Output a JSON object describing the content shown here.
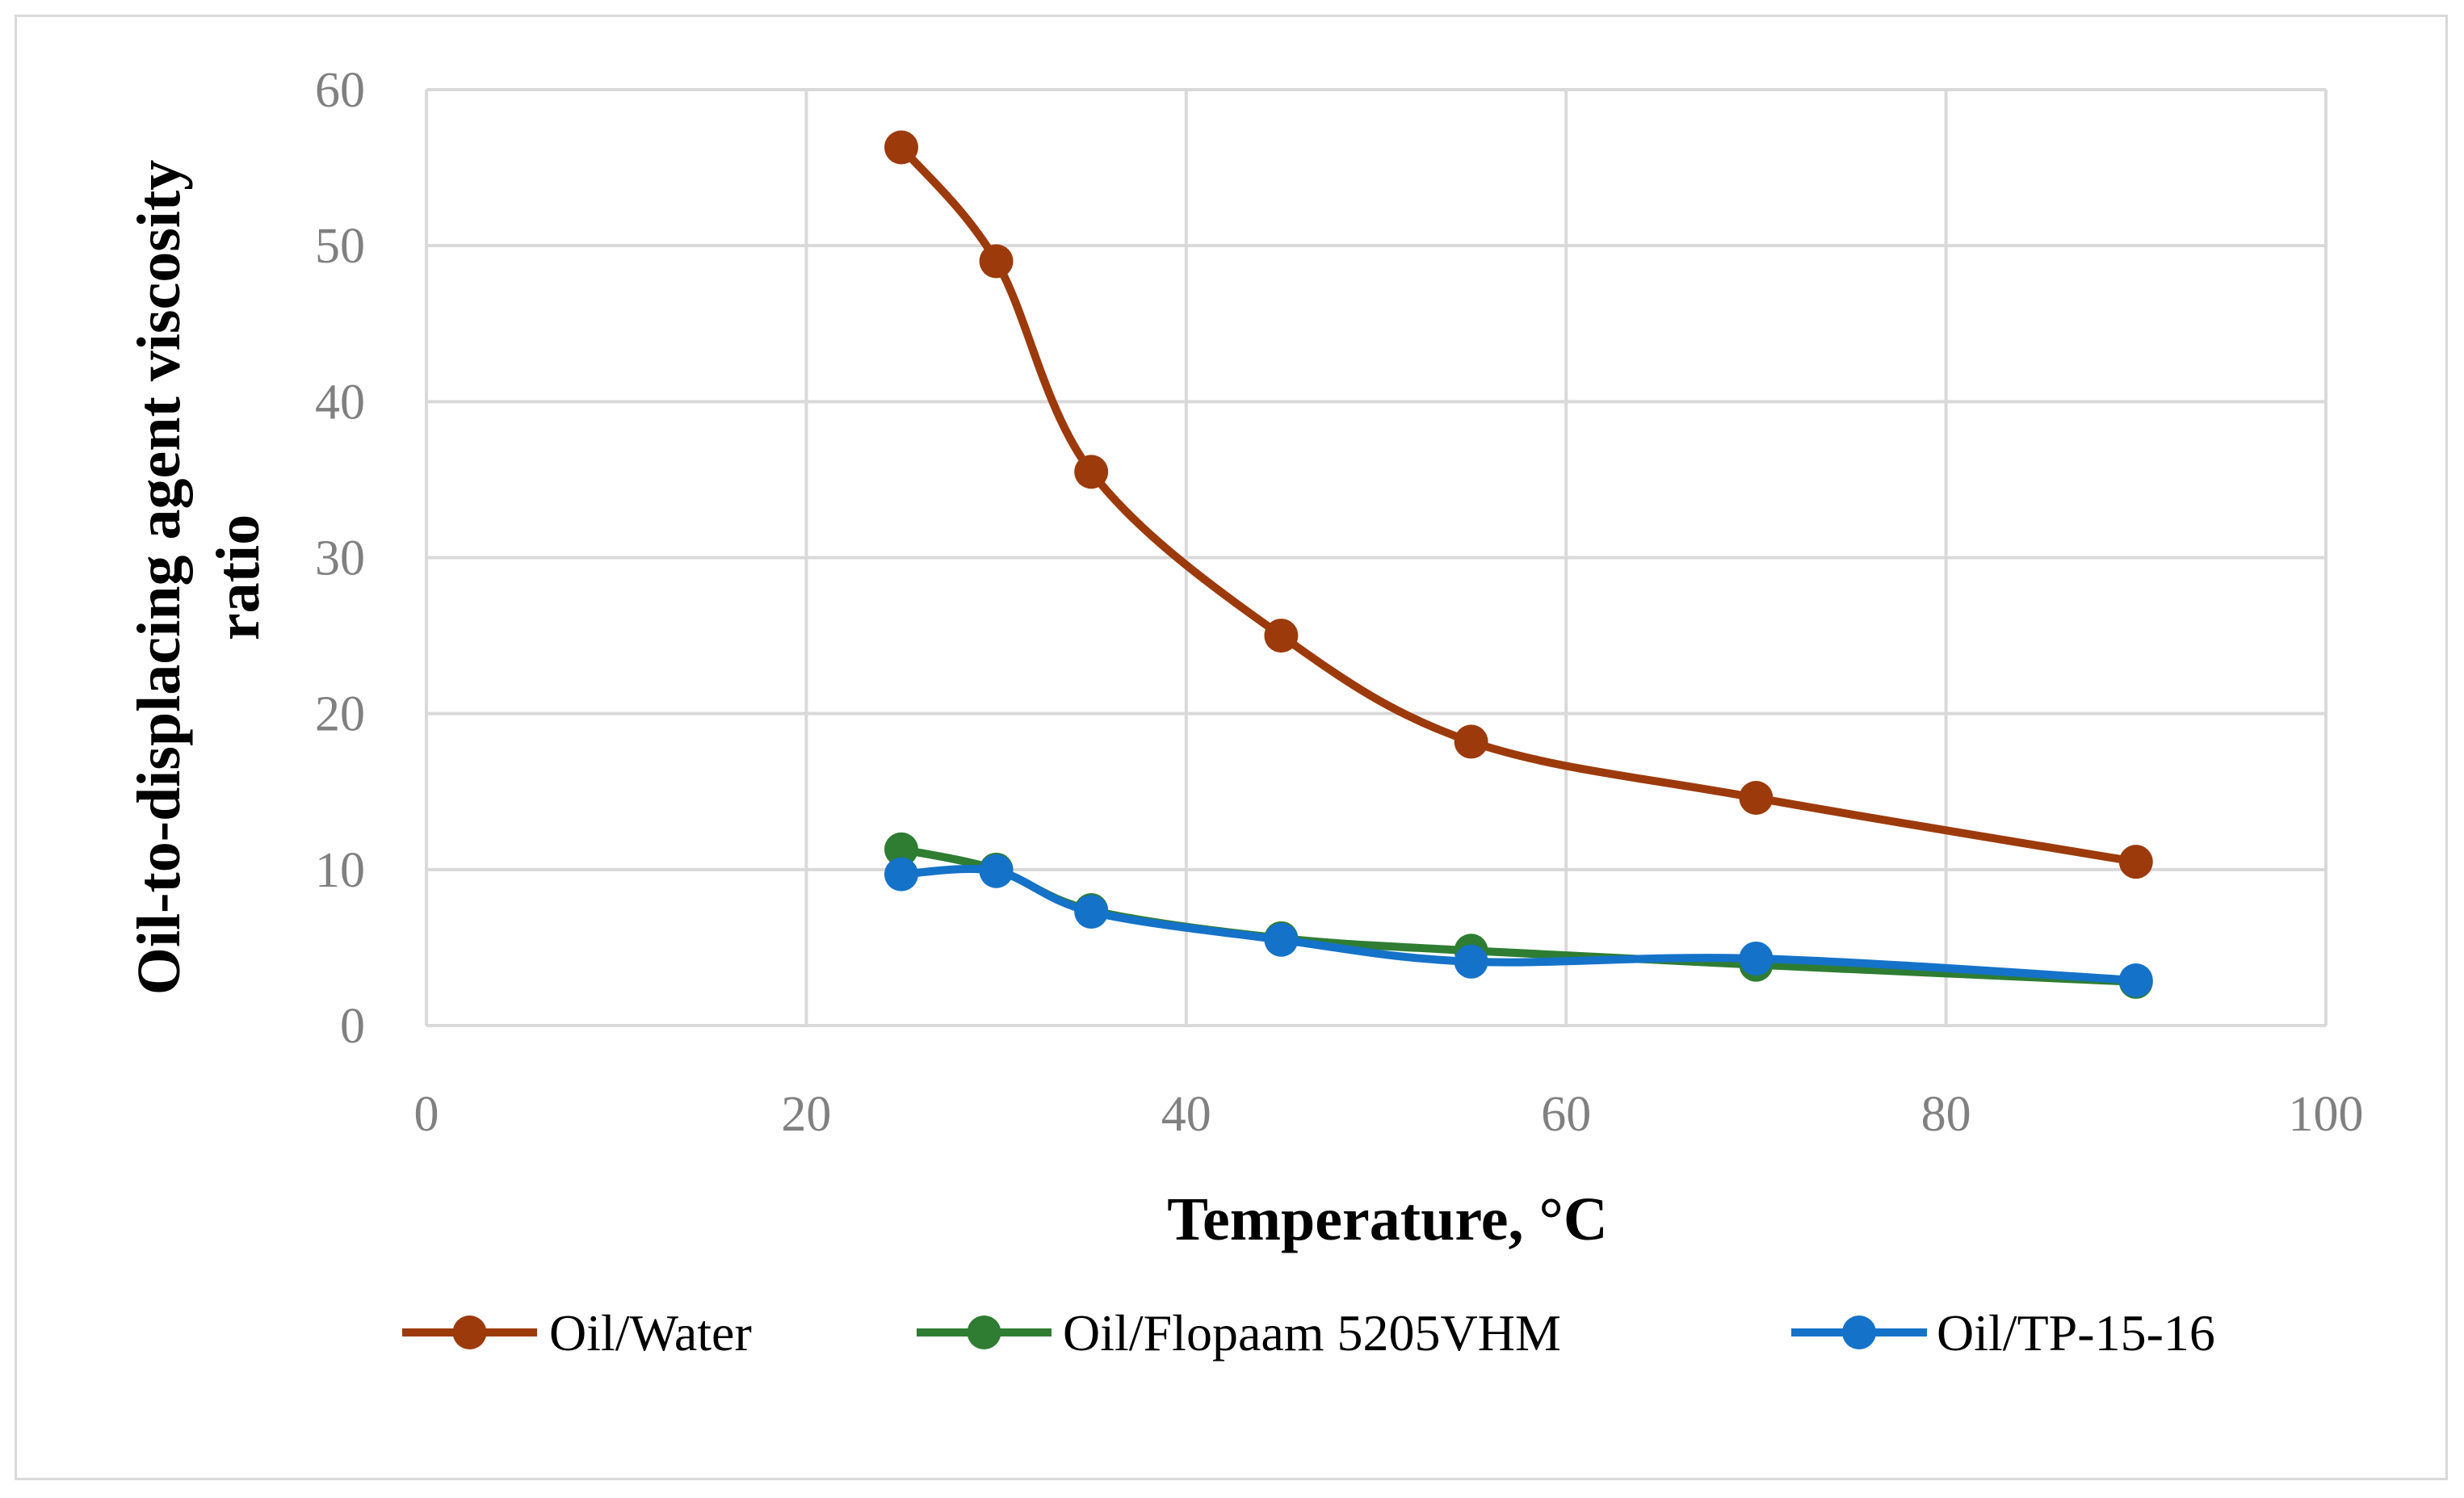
{
  "chart_data": {
    "type": "line",
    "title": "",
    "xlabel": "Temperature, °C",
    "ylabel_line1": "Oil-to-displacing agent viscosity",
    "ylabel_line2": "ratio",
    "xlim": [
      0,
      100
    ],
    "ylim": [
      0,
      60
    ],
    "x_ticks": [
      0,
      20,
      40,
      60,
      80,
      100
    ],
    "y_ticks": [
      0,
      10,
      20,
      30,
      40,
      50,
      60
    ],
    "x_tick_labels": [
      "0",
      "20",
      "40",
      "60",
      "80",
      "100"
    ],
    "y_tick_labels": [
      "0",
      "10",
      "20",
      "30",
      "40",
      "50",
      "60"
    ],
    "grid": true,
    "smooth": true,
    "legend_position": "bottom",
    "series": [
      {
        "name": "Oil/Water",
        "color": "#9c3a0c",
        "x": [
          25,
          30,
          35,
          45,
          55,
          70,
          90
        ],
        "y": [
          56.3,
          49.0,
          35.5,
          25.0,
          18.2,
          14.6,
          10.5
        ]
      },
      {
        "name": "Oil/Flopaam 5205VHM",
        "color": "#2e7d32",
        "x": [
          25,
          30,
          35,
          45,
          55,
          70,
          90
        ],
        "y": [
          11.3,
          10.0,
          7.4,
          5.6,
          4.8,
          3.9,
          2.8
        ]
      },
      {
        "name": "Oil/TP-15-16",
        "color": "#1572c9",
        "x": [
          25,
          30,
          35,
          45,
          55,
          70,
          90
        ],
        "y": [
          9.7,
          9.9,
          7.3,
          5.5,
          4.1,
          4.3,
          2.9
        ]
      }
    ]
  }
}
